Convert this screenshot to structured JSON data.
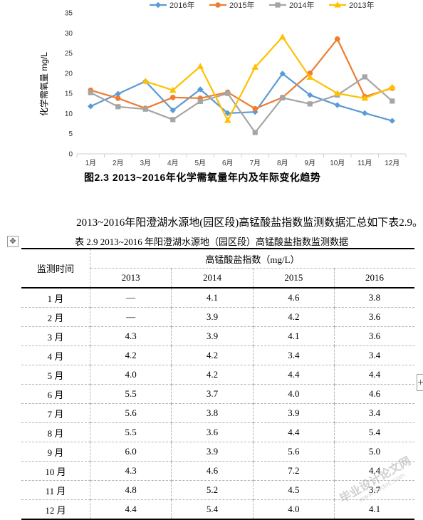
{
  "chart_data": {
    "type": "line",
    "categories": [
      "1月",
      "2月",
      "3月",
      "4月",
      "5月",
      "6月",
      "7月",
      "8月",
      "9月",
      "10月",
      "11月",
      "12月"
    ],
    "ylabel": "化学需氧量 mg/L",
    "ylim": [
      0,
      35
    ],
    "yticks": [
      0,
      5,
      10,
      15,
      20,
      25,
      30,
      35
    ],
    "grid": false,
    "legend_position": "top",
    "series": [
      {
        "name": "2016年",
        "color": "#5b9bd5",
        "marker": "diamond",
        "values": [
          11.8,
          14.9,
          18.0,
          10.8,
          16.0,
          10.1,
          10.4,
          19.9,
          14.6,
          12.1,
          10.1,
          8.2
        ]
      },
      {
        "name": "2015年",
        "color": "#ed7d31",
        "marker": "circle",
        "values": [
          15.8,
          13.8,
          11.3,
          14.0,
          13.8,
          15.3,
          11.2,
          14.0,
          20.0,
          28.5,
          14.2,
          16.3
        ]
      },
      {
        "name": "2014年",
        "color": "#a5a5a5",
        "marker": "square",
        "values": [
          15.2,
          11.7,
          11.1,
          8.5,
          13.0,
          15.0,
          5.3,
          13.9,
          12.4,
          14.6,
          19.1,
          13.1
        ]
      },
      {
        "name": "2013年",
        "color": "#ffc000",
        "marker": "triangle",
        "values": [
          null,
          null,
          18.0,
          15.8,
          21.7,
          8.3,
          21.5,
          29.0,
          19.0,
          15.0,
          13.8,
          16.5
        ]
      }
    ]
  },
  "figure_caption": "图2.3 2013~2016年化学需氧量年内及年际变化趋势",
  "paragraph": "2013~2016年阳澄湖水源地(园区段)高锰酸盐指数监测数据汇总如下表2.9。",
  "table": {
    "title": "表 2.9 2013~2016 年阳澄湖水源地（园区段）高锰酸盐指数监测数据",
    "col_monitor": "监测时间",
    "col_group": "高锰酸盐指数（mg/L）",
    "years": [
      "2013",
      "2014",
      "2015",
      "2016"
    ],
    "rows": [
      {
        "month": "1 月",
        "v": [
          "—",
          "4.1",
          "4.6",
          "3.8"
        ]
      },
      {
        "month": "2 月",
        "v": [
          "—",
          "3.9",
          "4.2",
          "3.6"
        ]
      },
      {
        "month": "3 月",
        "v": [
          "4.3",
          "3.9",
          "4.1",
          "3.6"
        ]
      },
      {
        "month": "4 月",
        "v": [
          "4.2",
          "4.2",
          "3.4",
          "3.4"
        ]
      },
      {
        "month": "5 月",
        "v": [
          "4.0",
          "4.2",
          "4.4",
          "4.4"
        ]
      },
      {
        "month": "6 月",
        "v": [
          "5.5",
          "3.7",
          "4.0",
          "4.6"
        ]
      },
      {
        "month": "7 月",
        "v": [
          "5.6",
          "3.8",
          "3.9",
          "3.4"
        ]
      },
      {
        "month": "8 月",
        "v": [
          "5.5",
          "3.6",
          "4.4",
          "5.4"
        ]
      },
      {
        "month": "9 月",
        "v": [
          "6.0",
          "3.9",
          "5.6",
          "5.0"
        ]
      },
      {
        "month": "10 月",
        "v": [
          "4.3",
          "4.6",
          "7.2",
          "4.4"
        ]
      },
      {
        "month": "11 月",
        "v": [
          "4.8",
          "5.2",
          "4.5",
          "3.7"
        ]
      },
      {
        "month": "12 月",
        "v": [
          "4.4",
          "5.4",
          "4.0",
          "4.1"
        ]
      }
    ]
  },
  "icons": {
    "move_handle": "move-arrows-icon",
    "side_handle": "plus-icon"
  },
  "handles": {
    "move_glyph": "✥",
    "side_glyph": "+"
  },
  "watermark": {
    "main": "毕业设计论文网",
    "sub": "www.56doc.com"
  }
}
